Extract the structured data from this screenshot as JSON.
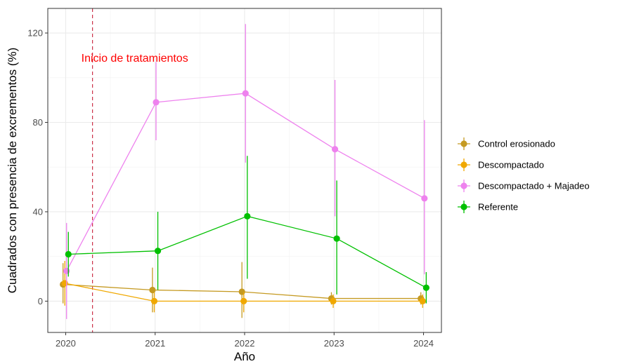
{
  "chart_data": {
    "type": "line",
    "title": "",
    "xlabel": "Año",
    "ylabel": "Cuadrados con presencia de excrementos (%)",
    "x": [
      2020,
      2021,
      2022,
      2023,
      2024
    ],
    "x_ticks": [
      "2020",
      "2021",
      "2022",
      "2023",
      "2024"
    ],
    "y_ticks": [
      "0",
      "40",
      "80",
      "120"
    ],
    "xlim": [
      2019.8,
      2024.2
    ],
    "ylim": [
      -14,
      131
    ],
    "grid": true,
    "legend_position": "right",
    "error_bars": true,
    "series": [
      {
        "name": "Control erosionado",
        "color": "#C59A22",
        "dodge": -0.03,
        "values": [
          7.5,
          5,
          4.2,
          1.2,
          1.2
        ],
        "lower": [
          -1,
          -5,
          -7.5,
          -1.5,
          -1.5
        ],
        "upper": [
          17,
          15,
          17.5,
          4,
          4
        ]
      },
      {
        "name": "Descompactado",
        "color": "#F0A800",
        "dodge": -0.01,
        "values": [
          8,
          0,
          0,
          0,
          0
        ],
        "lower": [
          -2,
          -5,
          -5,
          -3,
          -3
        ],
        "upper": [
          18,
          4,
          4,
          3,
          3
        ]
      },
      {
        "name": "Descompactado + Majadeo",
        "color": "#EE82EE",
        "dodge": 0.01,
        "values": [
          13.5,
          89,
          93,
          68,
          46
        ],
        "lower": [
          -8,
          72,
          62,
          38,
          12
        ],
        "upper": [
          35,
          107,
          124,
          99,
          81
        ]
      },
      {
        "name": "Referente",
        "color": "#00C000",
        "dodge": 0.03,
        "values": [
          21,
          22.5,
          38,
          28,
          6
        ],
        "lower": [
          11,
          5,
          10,
          3,
          -1
        ],
        "upper": [
          31,
          40,
          65,
          54,
          13
        ]
      }
    ],
    "annotations": [
      {
        "type": "vline",
        "x": 2020.3,
        "color": "#C8203A",
        "style": "dashed",
        "label": "Inicio de tratamientos",
        "label_color": "#FF0000",
        "label_y": 109
      }
    ]
  }
}
